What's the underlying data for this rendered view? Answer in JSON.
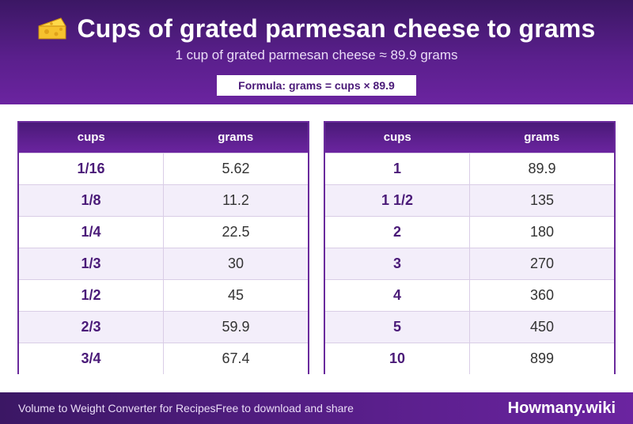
{
  "header": {
    "icon": "cheese-icon",
    "title": "Cups of grated parmesan cheese to grams",
    "subtitle": "1 cup of grated parmesan cheese ≈ 89.9 grams",
    "formula": "Formula: grams = cups × 89.9"
  },
  "tables": [
    {
      "columns": [
        "cups",
        "grams"
      ],
      "rows": [
        [
          "1/16",
          "5.62"
        ],
        [
          "1/8",
          "11.2"
        ],
        [
          "1/4",
          "22.5"
        ],
        [
          "1/3",
          "30"
        ],
        [
          "1/2",
          "45"
        ],
        [
          "2/3",
          "59.9"
        ],
        [
          "3/4",
          "67.4"
        ]
      ]
    },
    {
      "columns": [
        "cups",
        "grams"
      ],
      "rows": [
        [
          "1",
          "89.9"
        ],
        [
          "1 1/2",
          "135"
        ],
        [
          "2",
          "180"
        ],
        [
          "3",
          "270"
        ],
        [
          "4",
          "360"
        ],
        [
          "5",
          "450"
        ],
        [
          "10",
          "899"
        ]
      ]
    }
  ],
  "footer": {
    "left_text": "Volume to Weight Converter for RecipesFree to download and share",
    "brand": "Howmany.wiki"
  },
  "colors": {
    "primary": "#5a1f8c",
    "accent_text": "#4a1a78",
    "row_alt": "#f3eefa"
  }
}
